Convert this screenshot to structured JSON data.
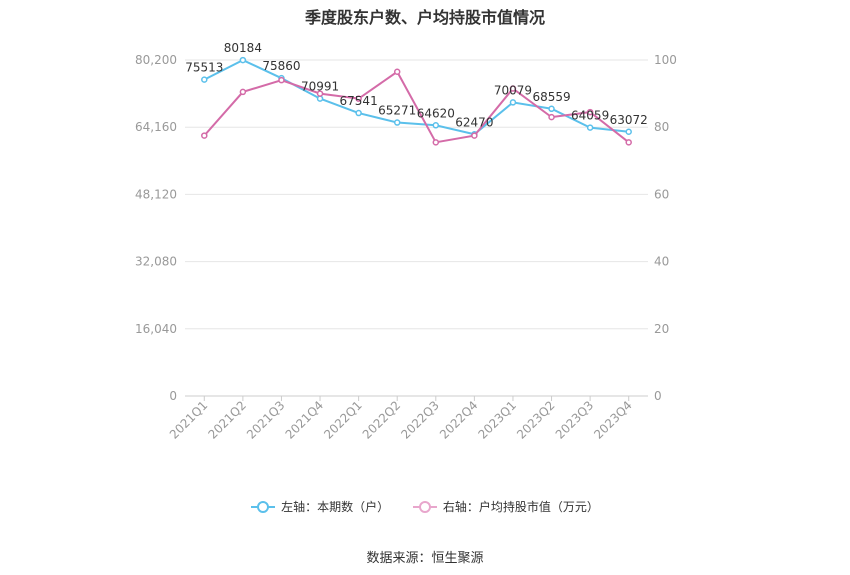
{
  "chart_data": {
    "type": "line",
    "title": "季度股东户数、户均持股市值情况",
    "categories": [
      "2021Q1",
      "2021Q2",
      "2021Q3",
      "2021Q4",
      "2022Q1",
      "2022Q2",
      "2022Q3",
      "2022Q4",
      "2023Q1",
      "2023Q2",
      "2023Q3",
      "2023Q4"
    ],
    "left_axis": {
      "ticks": [
        "0",
        "16,040",
        "32,080",
        "48,120",
        "64,160",
        "80,200"
      ],
      "min": 0,
      "max": 80200
    },
    "right_axis": {
      "ticks": [
        "0",
        "20",
        "40",
        "60",
        "80",
        "100"
      ],
      "min": 0,
      "max": 100
    },
    "series": [
      {
        "name": "左轴：本期数（户）",
        "axis": "left",
        "color": "#5bc0eb",
        "values": [
          75513,
          80184,
          75860,
          70991,
          67541,
          65271,
          64620,
          62470,
          70079,
          68559,
          64059,
          63072
        ],
        "labels": [
          "75513",
          "80184",
          "75860",
          "70991",
          "67541",
          "65271",
          "64620",
          "62470",
          "70079",
          "68559",
          "64059",
          "63072"
        ]
      },
      {
        "name": "右轴：户均持股市值（万元）",
        "axis": "right",
        "color": "#d46ba8",
        "values": [
          77.5,
          90.5,
          94.0,
          90.0,
          88.5,
          96.5,
          75.5,
          77.5,
          91.5,
          83.0,
          84.5,
          75.5
        ]
      }
    ],
    "grid": true,
    "legend_position": "bottom"
  },
  "source": "数据来源：恒生聚源"
}
